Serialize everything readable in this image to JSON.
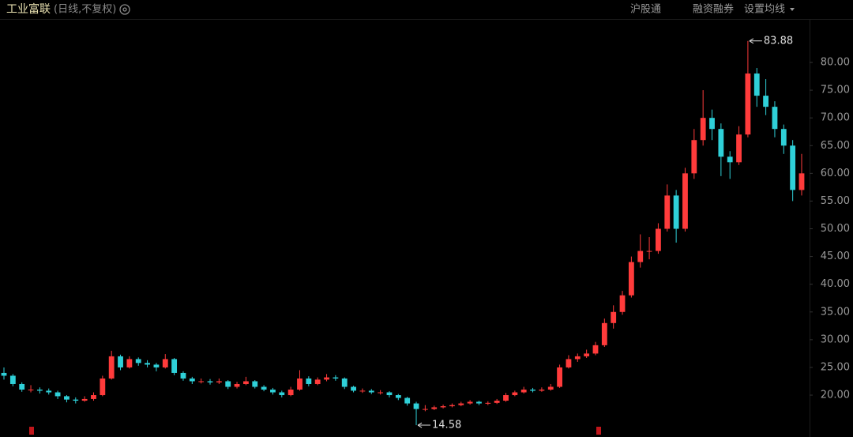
{
  "header": {
    "title": "工业富联",
    "subtitle": "(日线,不复权)",
    "menu": [
      "沪股通",
      "融资融券",
      "设置均线"
    ]
  },
  "chart_data": {
    "type": "candlestick",
    "up_color": "#ff3b3b",
    "down_color": "#2fd0d8",
    "ylim": [
      12.45,
      91.26
    ],
    "yticks": [
      {
        "value": 20,
        "label": "20.00"
      },
      {
        "value": 25,
        "label": "25.00"
      },
      {
        "value": 30,
        "label": "30.00"
      },
      {
        "value": 35,
        "label": "35.00"
      },
      {
        "value": 40,
        "label": "40.00"
      },
      {
        "value": 45,
        "label": "45.00"
      },
      {
        "value": 50,
        "label": "50.00"
      },
      {
        "value": 55,
        "label": "55.00"
      },
      {
        "value": 60,
        "label": "60.00"
      },
      {
        "value": 65,
        "label": "65.00"
      },
      {
        "value": 70,
        "label": "70.00"
      },
      {
        "value": 75,
        "label": "75.00"
      },
      {
        "value": 80,
        "label": "80.00"
      }
    ],
    "open": [
      24,
      23.5,
      22,
      21,
      21,
      20.8,
      20.5,
      19.8,
      19.2,
      19,
      19.3,
      20,
      23,
      27,
      25,
      26.5,
      25.8,
      25.5,
      25,
      26.5,
      24,
      23,
      22.5,
      22.5,
      22.3,
      22.5,
      21.5,
      22,
      22.5,
      21.5,
      21,
      20.5,
      20,
      21,
      23,
      22,
      22.8,
      23.2,
      23,
      21.5,
      20.8,
      20.8,
      20.5,
      20.5,
      20,
      19.5,
      18.5,
      17.5,
      17.5,
      17.8,
      18,
      18.2,
      18.5,
      18.8,
      18.5,
      18.6,
      19,
      20,
      20.5,
      21,
      20.8,
      21,
      21.5,
      25,
      26.5,
      27,
      27.5,
      29,
      33,
      35,
      38,
      44,
      46,
      46,
      50,
      56,
      50,
      60,
      66,
      70,
      68,
      63,
      62,
      67,
      78,
      74,
      72,
      68,
      65,
      57
    ],
    "high": [
      25,
      23.8,
      22.3,
      21.8,
      21.4,
      21.2,
      20.8,
      20,
      19.6,
      19.8,
      20.5,
      23.5,
      28,
      27.3,
      27,
      26.8,
      26.3,
      25.8,
      27.4,
      26.7,
      24.3,
      23.3,
      23,
      22.9,
      23,
      22.7,
      22.4,
      23.3,
      22.7,
      21.8,
      21.3,
      20.8,
      21.5,
      24.5,
      23.4,
      23.2,
      23.8,
      23.6,
      23.2,
      21.7,
      21.2,
      21.1,
      20.9,
      20.7,
      20.2,
      19.7,
      18.8,
      18.2,
      18.1,
      18.3,
      18.5,
      18.8,
      19.1,
      19,
      18.9,
      19.3,
      20.4,
      20.8,
      21.5,
      21.3,
      21.4,
      22,
      25.5,
      27.2,
      27.5,
      28.2,
      29.6,
      33.8,
      36.2,
      38.8,
      45,
      49,
      48.5,
      51,
      58,
      57,
      61,
      68,
      75,
      71.5,
      69,
      64,
      68.5,
      83.88,
      79,
      77,
      73,
      68.8,
      66,
      63.5
    ],
    "low": [
      22.8,
      21.6,
      20.6,
      20.5,
      20.3,
      20.1,
      19.3,
      18.7,
      18.5,
      18.8,
      19,
      19.8,
      22.8,
      24.5,
      24.8,
      25.3,
      25,
      24.3,
      24.8,
      23.6,
      22.6,
      22,
      22.1,
      21.9,
      22,
      21.1,
      21.2,
      21.8,
      21.2,
      20.7,
      20.1,
      19.6,
      19.8,
      20.8,
      21.6,
      21.8,
      22.5,
      22.6,
      21.1,
      20.5,
      20.4,
      20.2,
      20.1,
      19.6,
      19.1,
      18.1,
      14.58,
      17.1,
      17.3,
      17.6,
      17.8,
      18,
      18.3,
      18.2,
      18.2,
      18.4,
      18.8,
      19.8,
      20.3,
      20.5,
      20.6,
      20.8,
      21.3,
      24.8,
      26,
      26.7,
      27.2,
      28.7,
      32,
      34.5,
      37.6,
      43,
      44.5,
      45.5,
      49.5,
      47.5,
      49.5,
      59,
      65,
      66,
      59.5,
      59,
      61.5,
      66.5,
      72,
      70.5,
      66.5,
      63.5,
      55,
      56
    ],
    "close": [
      23.5,
      22,
      21,
      21,
      20.8,
      20.5,
      19.8,
      19.2,
      19,
      19.3,
      20,
      23,
      27,
      25,
      26.5,
      25.8,
      25.5,
      25,
      26.5,
      24,
      23,
      22.5,
      22.5,
      22.3,
      22.5,
      21.5,
      22,
      22.5,
      21.5,
      21,
      20.5,
      20,
      21,
      23,
      22,
      22.8,
      23.2,
      23,
      21.5,
      20.8,
      20.8,
      20.5,
      20.5,
      20,
      19.5,
      18.5,
      17.5,
      17.5,
      17.8,
      18,
      18.2,
      18.5,
      18.8,
      18.5,
      18.6,
      19,
      20,
      20.5,
      21,
      20.8,
      21,
      21.5,
      25,
      26.5,
      27,
      27.5,
      29,
      33,
      35,
      38,
      44,
      46,
      46,
      50,
      56,
      50,
      60,
      66,
      70,
      68,
      63,
      62,
      67,
      78,
      74,
      72,
      68,
      65,
      57,
      60
    ]
  }
}
